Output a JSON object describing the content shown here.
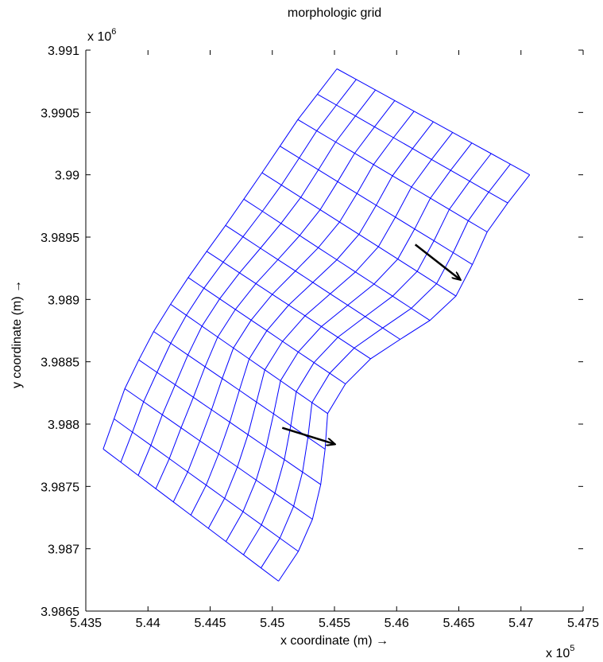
{
  "chart_data": {
    "type": "mesh",
    "title": "morphologic grid",
    "xlabel": "x coordinate (m) →",
    "ylabel": "y coordinate (m) →",
    "x_exponent_label": "x 10",
    "x_exponent_power": "5",
    "y_exponent_label": "x 10",
    "y_exponent_power": "6",
    "xlim": [
      543500,
      547500
    ],
    "ylim": [
      3986500,
      3991000
    ],
    "x_tick_values": [
      543500,
      544000,
      544500,
      545000,
      545500,
      546000,
      546500,
      547000,
      547500
    ],
    "x_tick_labels": [
      "5.435",
      "5.44",
      "5.445",
      "5.45",
      "5.455",
      "5.46",
      "5.465",
      "5.47",
      "5.475"
    ],
    "y_tick_values": [
      3986500,
      3987000,
      3987500,
      3988000,
      3988500,
      3989000,
      3989500,
      3990000,
      3990500,
      3991000
    ],
    "y_tick_labels": [
      "3.9865",
      "3.987",
      "3.9875",
      "3.988",
      "3.9885",
      "3.989",
      "3.9895",
      "3.99",
      "3.9905",
      "3.991"
    ],
    "grid_on": false,
    "mesh_color": "#0000ff",
    "mesh": {
      "cross_sections": 15,
      "points_per_section": 11,
      "left_boundary": [
        [
          543640,
          3987800
        ],
        [
          543830,
          3988330
        ],
        [
          544075,
          3988800
        ],
        [
          544360,
          3989230
        ],
        [
          544650,
          3989630
        ],
        [
          544920,
          3990020
        ],
        [
          545210,
          3990450
        ],
        [
          545520,
          3990850
        ]
      ],
      "lower_boundary": [
        [
          543640,
          3987800
        ],
        [
          545050,
          3986740
        ]
      ],
      "right_boundary": [
        [
          545050,
          3986740
        ],
        [
          545290,
          3987100
        ],
        [
          545410,
          3987600
        ],
        [
          545450,
          3988150
        ],
        [
          545650,
          3988400
        ],
        [
          545900,
          3988620
        ],
        [
          546180,
          3988750
        ],
        [
          546480,
          3989030
        ],
        [
          546600,
          3989260
        ],
        [
          546750,
          3989590
        ],
        [
          547070,
          3990000
        ]
      ],
      "upper_boundary": [
        [
          545520,
          3990850
        ],
        [
          547070,
          3990000
        ]
      ]
    },
    "arrows": [
      {
        "from": [
          546150,
          3989440
        ],
        "to": [
          546510,
          3989160
        ]
      },
      {
        "from": [
          545080,
          3987970
        ],
        "to": [
          545500,
          3987840
        ]
      }
    ]
  }
}
